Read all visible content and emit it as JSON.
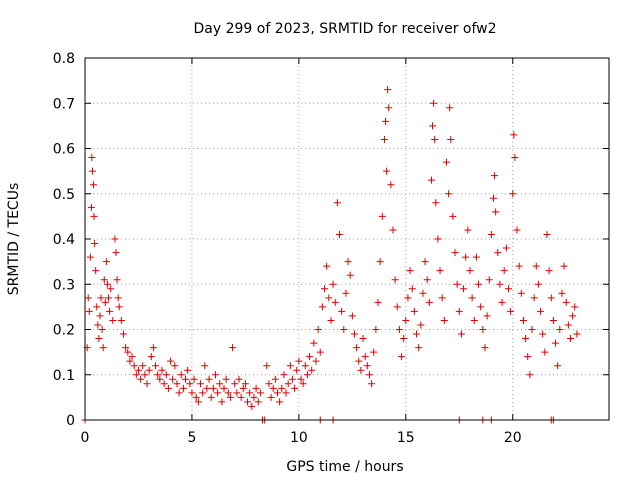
{
  "chart_data": {
    "type": "scatter",
    "title": "Day 299 of 2023, SRMTID for receiver ofw2",
    "xlabel": "GPS time / hours",
    "ylabel": "SRMTID / TECUs",
    "xlim": [
      0,
      24.5
    ],
    "ylim": [
      0,
      0.8
    ],
    "x_ticks": [
      0,
      5,
      10,
      15,
      20
    ],
    "y_ticks": [
      0,
      0.1,
      0.2,
      0.3,
      0.4,
      0.5,
      0.6,
      0.7,
      0.8
    ],
    "grid": true,
    "legend": "none",
    "marker": "plus",
    "color": "#e00000",
    "series": [
      {
        "name": "SRMTID",
        "points": [
          [
            0.1,
            0.16
          ],
          [
            0.15,
            0.27
          ],
          [
            0.2,
            0.24
          ],
          [
            0.25,
            0.36
          ],
          [
            0.3,
            0.47
          ],
          [
            0.32,
            0.58
          ],
          [
            0.35,
            0.55
          ],
          [
            0.4,
            0.52
          ],
          [
            0.42,
            0.45
          ],
          [
            0.45,
            0.39
          ],
          [
            0.5,
            0.33
          ],
          [
            0.55,
            0.25
          ],
          [
            0.6,
            0.21
          ],
          [
            0.65,
            0.18
          ],
          [
            0.7,
            0.23
          ],
          [
            0.75,
            0.27
          ],
          [
            0.8,
            0.2
          ],
          [
            0.85,
            0.16
          ],
          [
            0.9,
            0.31
          ],
          [
            0.95,
            0.26
          ],
          [
            1.0,
            0.35
          ],
          [
            1.05,
            0.3
          ],
          [
            1.1,
            0.27
          ],
          [
            1.15,
            0.24
          ],
          [
            1.2,
            0.29
          ],
          [
            1.3,
            0.22
          ],
          [
            1.4,
            0.4
          ],
          [
            1.45,
            0.37
          ],
          [
            1.5,
            0.31
          ],
          [
            1.55,
            0.27
          ],
          [
            1.6,
            0.25
          ],
          [
            1.7,
            0.22
          ],
          [
            1.8,
            0.19
          ],
          [
            1.9,
            0.16
          ],
          [
            2.0,
            0.15
          ],
          [
            2.1,
            0.13
          ],
          [
            2.2,
            0.14
          ],
          [
            2.3,
            0.12
          ],
          [
            2.4,
            0.1
          ],
          [
            2.5,
            0.11
          ],
          [
            2.6,
            0.09
          ],
          [
            2.7,
            0.12
          ],
          [
            2.8,
            0.1
          ],
          [
            2.9,
            0.08
          ],
          [
            3.0,
            0.11
          ],
          [
            3.1,
            0.14
          ],
          [
            3.2,
            0.16
          ],
          [
            3.3,
            0.12
          ],
          [
            3.4,
            0.1
          ],
          [
            3.5,
            0.09
          ],
          [
            3.6,
            0.11
          ],
          [
            3.7,
            0.08
          ],
          [
            3.8,
            0.1
          ],
          [
            3.9,
            0.07
          ],
          [
            4.0,
            0.13
          ],
          [
            4.1,
            0.09
          ],
          [
            4.2,
            0.12
          ],
          [
            4.3,
            0.08
          ],
          [
            4.4,
            0.06
          ],
          [
            4.5,
            0.1
          ],
          [
            4.6,
            0.07
          ],
          [
            4.7,
            0.09
          ],
          [
            4.8,
            0.11
          ],
          [
            4.9,
            0.08
          ],
          [
            5.0,
            0.06
          ],
          [
            5.1,
            0.09
          ],
          [
            5.2,
            0.05
          ],
          [
            5.3,
            0.04
          ],
          [
            5.4,
            0.08
          ],
          [
            5.5,
            0.06
          ],
          [
            5.6,
            0.12
          ],
          [
            5.7,
            0.07
          ],
          [
            5.8,
            0.09
          ],
          [
            5.9,
            0.05
          ],
          [
            6.0,
            0.07
          ],
          [
            6.1,
            0.1
          ],
          [
            6.2,
            0.06
          ],
          [
            6.3,
            0.08
          ],
          [
            6.4,
            0.04
          ],
          [
            6.5,
            0.07
          ],
          [
            6.6,
            0.09
          ],
          [
            6.7,
            0.06
          ],
          [
            6.8,
            0.05
          ],
          [
            6.9,
            0.16
          ],
          [
            7.0,
            0.08
          ],
          [
            7.1,
            0.06
          ],
          [
            7.2,
            0.09
          ],
          [
            7.3,
            0.05
          ],
          [
            7.4,
            0.07
          ],
          [
            7.5,
            0.08
          ],
          [
            7.6,
            0.04
          ],
          [
            7.7,
            0.06
          ],
          [
            7.8,
            0.03
          ],
          [
            7.9,
            0.05
          ],
          [
            8.0,
            0.07
          ],
          [
            8.1,
            0.04
          ],
          [
            8.2,
            0.06
          ],
          [
            8.5,
            0.12
          ],
          [
            8.6,
            0.08
          ],
          [
            8.7,
            0.05
          ],
          [
            8.8,
            0.07
          ],
          [
            8.9,
            0.09
          ],
          [
            9.0,
            0.06
          ],
          [
            9.1,
            0.04
          ],
          [
            9.2,
            0.07
          ],
          [
            9.3,
            0.1
          ],
          [
            9.4,
            0.06
          ],
          [
            9.5,
            0.08
          ],
          [
            9.6,
            0.12
          ],
          [
            9.7,
            0.09
          ],
          [
            9.8,
            0.07
          ],
          [
            9.9,
            0.11
          ],
          [
            10.0,
            0.13
          ],
          [
            10.1,
            0.09
          ],
          [
            10.2,
            0.08
          ],
          [
            10.3,
            0.12
          ],
          [
            10.4,
            0.1
          ],
          [
            10.5,
            0.14
          ],
          [
            10.6,
            0.11
          ],
          [
            10.7,
            0.17
          ],
          [
            10.8,
            0.13
          ],
          [
            10.9,
            0.2
          ],
          [
            11.0,
            0.15
          ],
          [
            11.1,
            0.25
          ],
          [
            11.2,
            0.29
          ],
          [
            11.3,
            0.34
          ],
          [
            11.4,
            0.27
          ],
          [
            11.5,
            0.22
          ],
          [
            11.6,
            0.3
          ],
          [
            11.7,
            0.26
          ],
          [
            11.8,
            0.48
          ],
          [
            11.9,
            0.41
          ],
          [
            12.0,
            0.24
          ],
          [
            12.1,
            0.2
          ],
          [
            12.2,
            0.28
          ],
          [
            12.3,
            0.35
          ],
          [
            12.4,
            0.32
          ],
          [
            12.5,
            0.23
          ],
          [
            12.6,
            0.19
          ],
          [
            12.7,
            0.16
          ],
          [
            12.8,
            0.13
          ],
          [
            12.9,
            0.11
          ],
          [
            13.0,
            0.18
          ],
          [
            13.1,
            0.14
          ],
          [
            13.2,
            0.12
          ],
          [
            13.3,
            0.1
          ],
          [
            13.4,
            0.08
          ],
          [
            13.5,
            0.15
          ],
          [
            13.6,
            0.2
          ],
          [
            13.7,
            0.26
          ],
          [
            13.8,
            0.35
          ],
          [
            13.9,
            0.45
          ],
          [
            14.0,
            0.62
          ],
          [
            14.05,
            0.66
          ],
          [
            14.1,
            0.55
          ],
          [
            14.15,
            0.73
          ],
          [
            14.2,
            0.69
          ],
          [
            14.3,
            0.52
          ],
          [
            14.4,
            0.42
          ],
          [
            14.5,
            0.31
          ],
          [
            14.6,
            0.25
          ],
          [
            14.7,
            0.2
          ],
          [
            14.8,
            0.14
          ],
          [
            14.9,
            0.18
          ],
          [
            15.0,
            0.22
          ],
          [
            15.1,
            0.27
          ],
          [
            15.2,
            0.33
          ],
          [
            15.3,
            0.29
          ],
          [
            15.4,
            0.24
          ],
          [
            15.5,
            0.19
          ],
          [
            15.6,
            0.16
          ],
          [
            15.7,
            0.21
          ],
          [
            15.8,
            0.28
          ],
          [
            15.9,
            0.35
          ],
          [
            16.0,
            0.31
          ],
          [
            16.1,
            0.26
          ],
          [
            16.2,
            0.53
          ],
          [
            16.25,
            0.65
          ],
          [
            16.3,
            0.7
          ],
          [
            16.35,
            0.62
          ],
          [
            16.4,
            0.48
          ],
          [
            16.5,
            0.4
          ],
          [
            16.6,
            0.33
          ],
          [
            16.7,
            0.27
          ],
          [
            16.8,
            0.22
          ],
          [
            16.9,
            0.57
          ],
          [
            17.0,
            0.5
          ],
          [
            17.05,
            0.69
          ],
          [
            17.1,
            0.62
          ],
          [
            17.2,
            0.45
          ],
          [
            17.3,
            0.37
          ],
          [
            17.4,
            0.3
          ],
          [
            17.5,
            0.24
          ],
          [
            17.6,
            0.19
          ],
          [
            17.7,
            0.29
          ],
          [
            17.8,
            0.36
          ],
          [
            17.9,
            0.42
          ],
          [
            18.0,
            0.33
          ],
          [
            18.1,
            0.27
          ],
          [
            18.2,
            0.22
          ],
          [
            18.3,
            0.36
          ],
          [
            18.4,
            0.3
          ],
          [
            18.5,
            0.25
          ],
          [
            18.6,
            0.2
          ],
          [
            18.7,
            0.16
          ],
          [
            18.8,
            0.23
          ],
          [
            18.9,
            0.31
          ],
          [
            19.0,
            0.41
          ],
          [
            19.1,
            0.49
          ],
          [
            19.15,
            0.54
          ],
          [
            19.2,
            0.46
          ],
          [
            19.3,
            0.37
          ],
          [
            19.4,
            0.3
          ],
          [
            19.5,
            0.26
          ],
          [
            19.6,
            0.33
          ],
          [
            19.7,
            0.38
          ],
          [
            19.8,
            0.29
          ],
          [
            19.9,
            0.24
          ],
          [
            20.0,
            0.5
          ],
          [
            20.05,
            0.63
          ],
          [
            20.1,
            0.58
          ],
          [
            20.2,
            0.42
          ],
          [
            20.3,
            0.34
          ],
          [
            20.4,
            0.28
          ],
          [
            20.5,
            0.22
          ],
          [
            20.6,
            0.18
          ],
          [
            20.7,
            0.14
          ],
          [
            20.8,
            0.1
          ],
          [
            20.9,
            0.2
          ],
          [
            21.0,
            0.27
          ],
          [
            21.1,
            0.34
          ],
          [
            21.2,
            0.3
          ],
          [
            21.3,
            0.24
          ],
          [
            21.4,
            0.19
          ],
          [
            21.5,
            0.15
          ],
          [
            21.6,
            0.41
          ],
          [
            21.7,
            0.33
          ],
          [
            21.8,
            0.27
          ],
          [
            21.9,
            0.22
          ],
          [
            22.0,
            0.17
          ],
          [
            22.1,
            0.12
          ],
          [
            22.2,
            0.2
          ],
          [
            22.3,
            0.28
          ],
          [
            22.4,
            0.34
          ],
          [
            22.5,
            0.26
          ],
          [
            22.6,
            0.21
          ],
          [
            22.7,
            0.18
          ],
          [
            22.8,
            0.23
          ],
          [
            22.9,
            0.25
          ],
          [
            23.0,
            0.19
          ],
          [
            0.0,
            0.0
          ],
          [
            8.3,
            0.0
          ],
          [
            8.4,
            0.0
          ],
          [
            11.0,
            0.0
          ],
          [
            11.6,
            0.0
          ],
          [
            17.5,
            0.0
          ],
          [
            18.6,
            0.0
          ],
          [
            19.0,
            0.0
          ],
          [
            21.8,
            0.0
          ],
          [
            21.9,
            0.0
          ]
        ]
      }
    ]
  }
}
